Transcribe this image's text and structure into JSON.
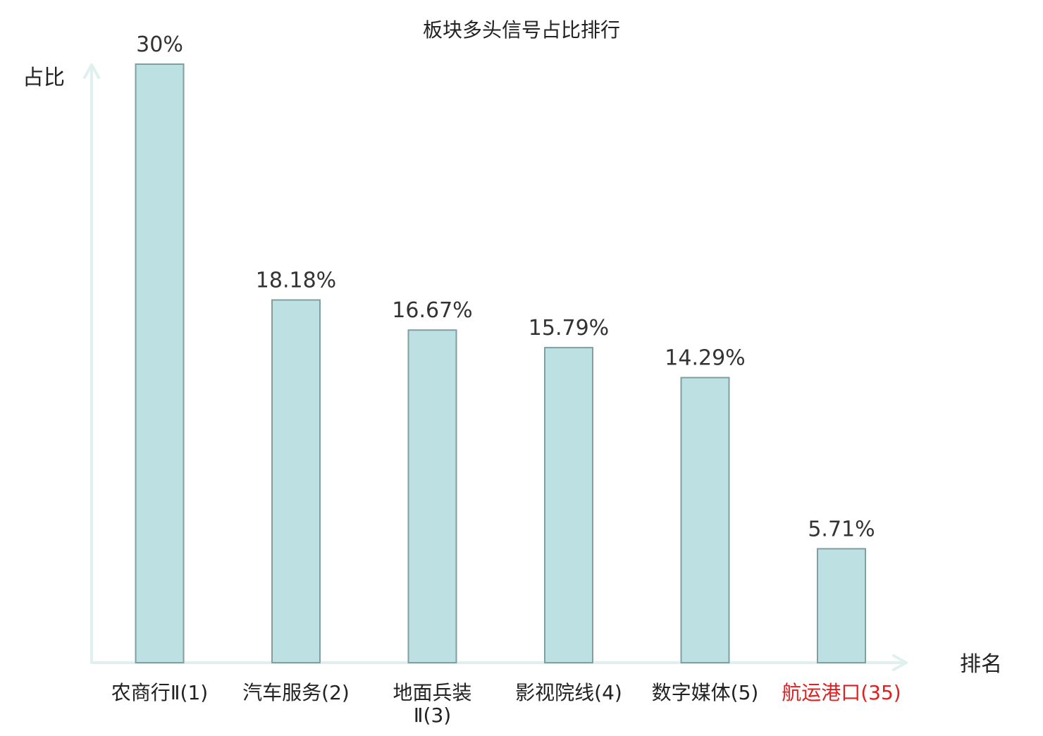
{
  "chart_data": {
    "type": "bar",
    "title": "板块多头信号占比排行",
    "xlabel": "排名",
    "ylabel": "占比",
    "categories": [
      "农商行Ⅱ(1)",
      "汽车服务(2)",
      "地面兵装Ⅱ(3)",
      "影视院线(4)",
      "数字媒体(5)",
      "航运港口(35)"
    ],
    "values": [
      30,
      18.18,
      16.67,
      15.79,
      14.29,
      5.71
    ],
    "value_labels": [
      "30%",
      "18.18%",
      "16.67%",
      "15.79%",
      "14.29%",
      "5.71%"
    ],
    "ylim": [
      0,
      30
    ],
    "grid": false,
    "legend": "none",
    "colors": {
      "bar_fill": "#bde0e2",
      "bar_stroke": "#7f9fa1",
      "axis": "#dff0ee",
      "text": "#222222",
      "value_text": "#333333",
      "highlight_text": "#e02020"
    },
    "highlight_index": 5
  }
}
